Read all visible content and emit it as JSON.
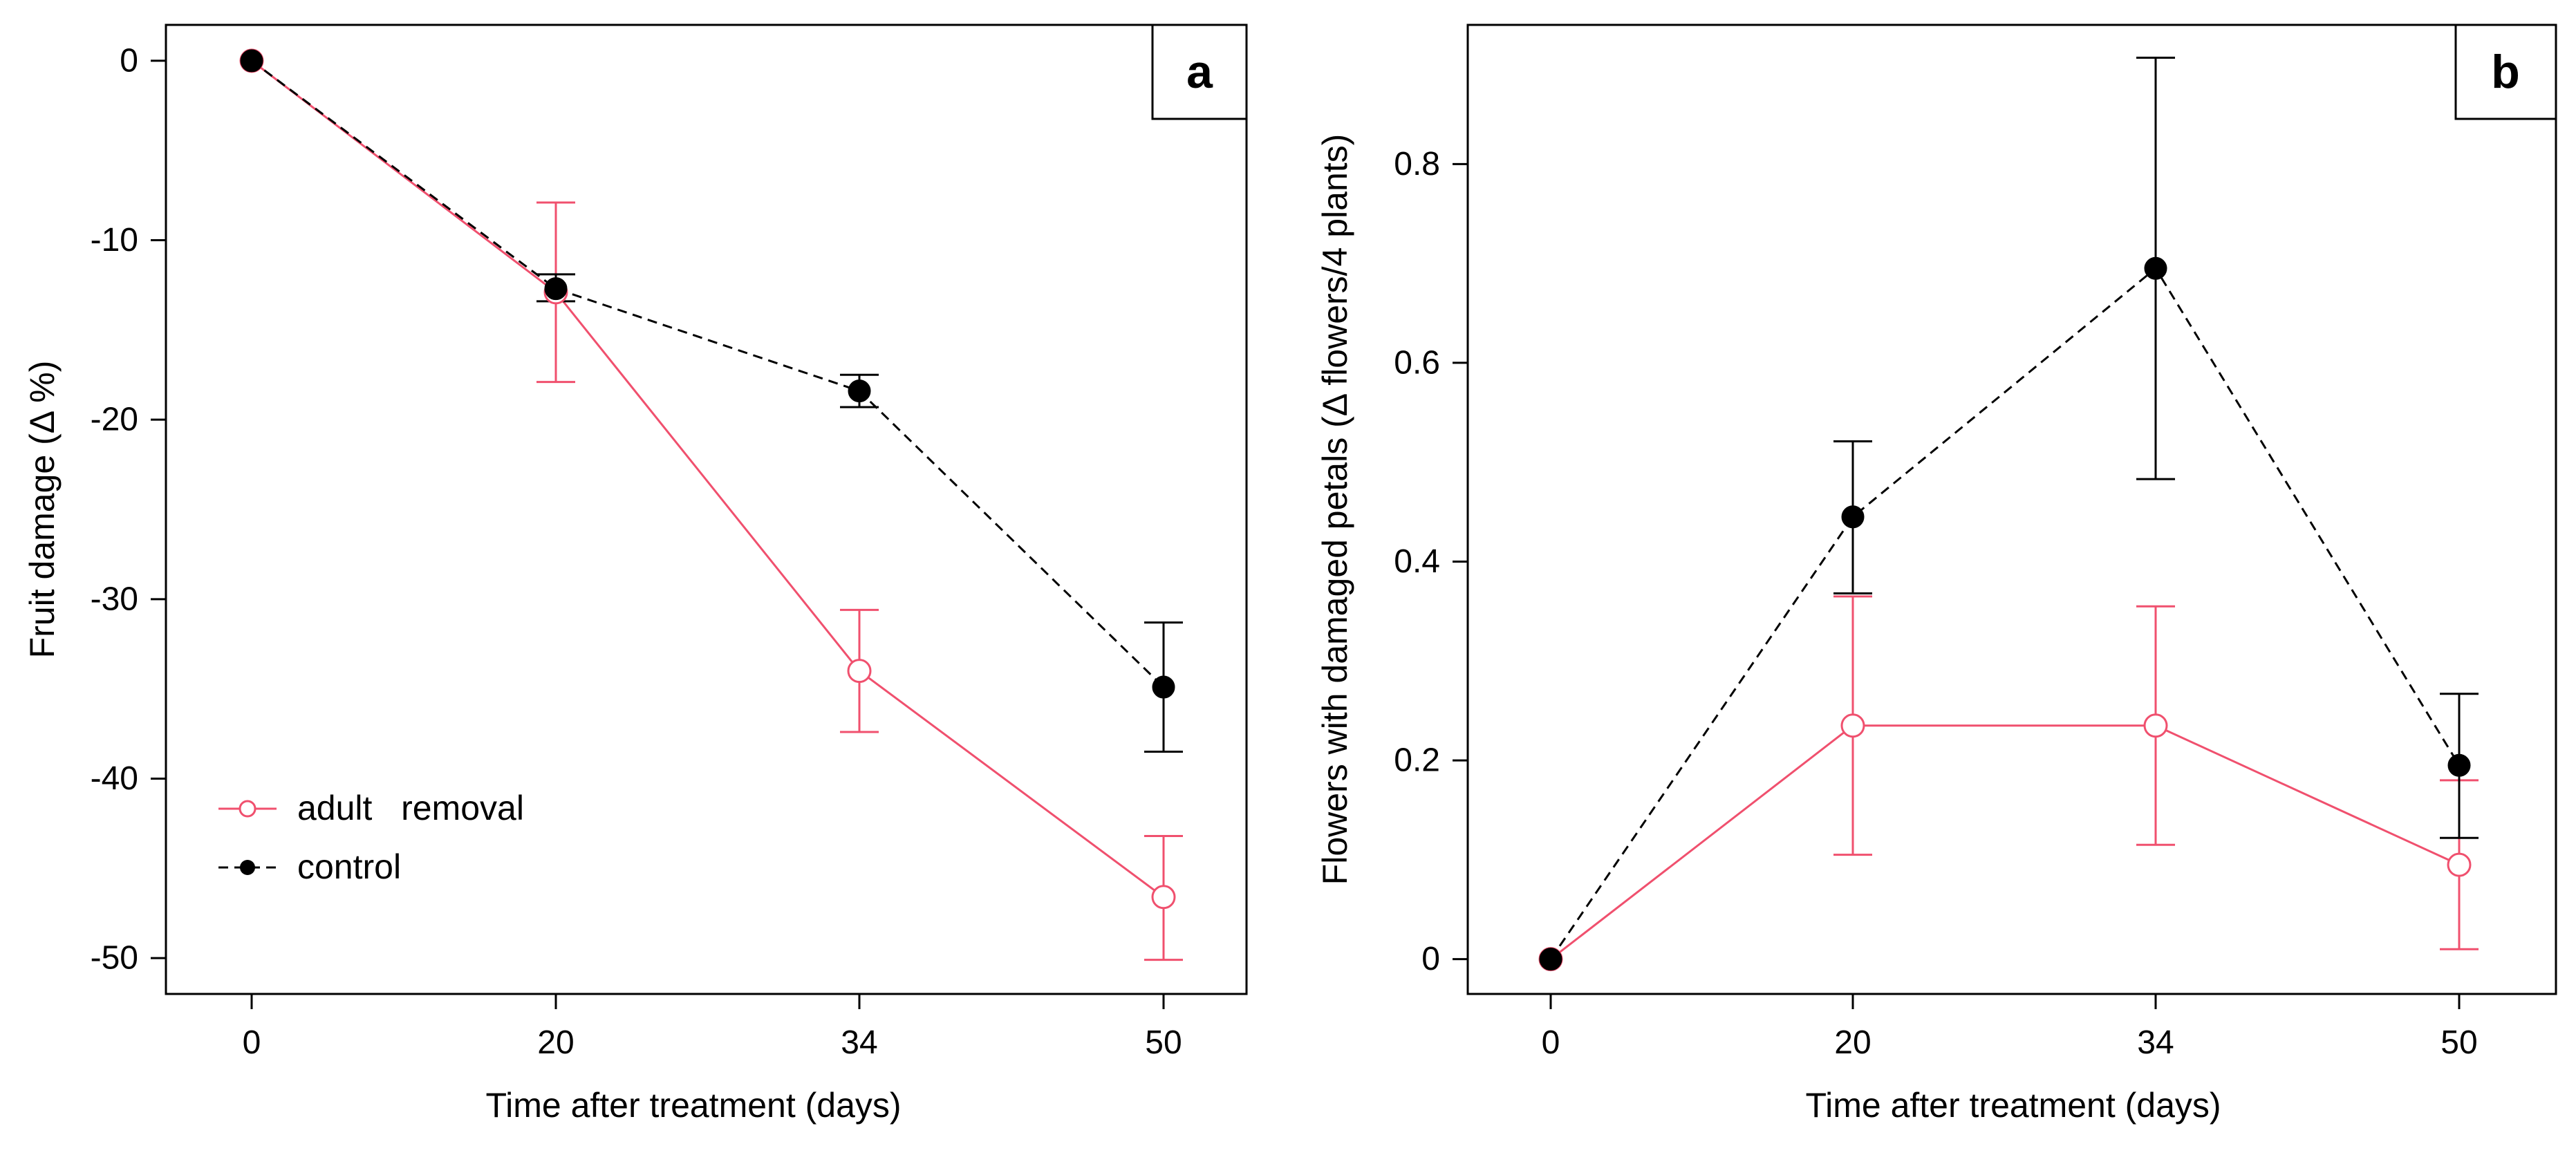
{
  "chart_data": [
    {
      "panel": "a",
      "type": "line",
      "title": "",
      "panel_label": "a",
      "xlabel": "Time after treatment (days)",
      "ylabel": "Fruit damage (Δ %)",
      "categories": [
        "0",
        "20",
        "34",
        "50"
      ],
      "x": [
        0,
        20,
        34,
        50
      ],
      "ylim": [
        -52,
        2
      ],
      "yticks": [
        0,
        -10,
        -20,
        -30,
        -40,
        -50
      ],
      "yticklabels": [
        "0",
        "-10",
        "-20",
        "-30",
        "-40",
        "-50"
      ],
      "legend": {
        "placement": "bottom-left",
        "entries": [
          "adult   removal",
          "control"
        ]
      },
      "series": [
        {
          "name": "adult   removal",
          "color": "#f0506e",
          "style": "solid",
          "marker": "open-circle",
          "values": [
            0,
            -12.9,
            -34.0,
            -46.6
          ],
          "err_low": [
            0,
            -17.9,
            -37.4,
            -50.1
          ],
          "err_high": [
            0,
            -7.9,
            -30.6,
            -43.2
          ]
        },
        {
          "name": "control",
          "color": "#000000",
          "style": "dashed",
          "marker": "filled-circle",
          "values": [
            0,
            -12.7,
            -18.4,
            -34.9
          ],
          "err_low": [
            0,
            -13.4,
            -19.3,
            -38.5
          ],
          "err_high": [
            0,
            -11.9,
            -17.5,
            -31.3
          ]
        }
      ]
    },
    {
      "panel": "b",
      "type": "line",
      "title": "",
      "panel_label": "b",
      "xlabel": "Time after treatment (days)",
      "ylabel": "Flowers with damaged petals (Δ flowers/4 plants)",
      "categories": [
        "0",
        "20",
        "34",
        "50"
      ],
      "x": [
        0,
        20,
        34,
        50
      ],
      "ylim": [
        -0.035,
        0.94
      ],
      "yticks": [
        0,
        0.2,
        0.4,
        0.6,
        0.8
      ],
      "yticklabels": [
        "0",
        "0.2",
        "0.4",
        "0.6",
        "0.8"
      ],
      "series": [
        {
          "name": "adult   removal",
          "color": "#f0506e",
          "style": "solid",
          "marker": "open-circle",
          "values": [
            0,
            0.235,
            0.235,
            0.095
          ],
          "err_low": [
            0,
            0.105,
            0.115,
            0.01
          ],
          "err_high": [
            0,
            0.365,
            0.355,
            0.18
          ]
        },
        {
          "name": "control",
          "color": "#000000",
          "style": "dashed",
          "marker": "filled-circle",
          "values": [
            0,
            0.445,
            0.695,
            0.195
          ],
          "err_low": [
            0,
            0.368,
            0.483,
            0.122
          ],
          "err_high": [
            0,
            0.521,
            0.907,
            0.267
          ]
        }
      ]
    }
  ]
}
